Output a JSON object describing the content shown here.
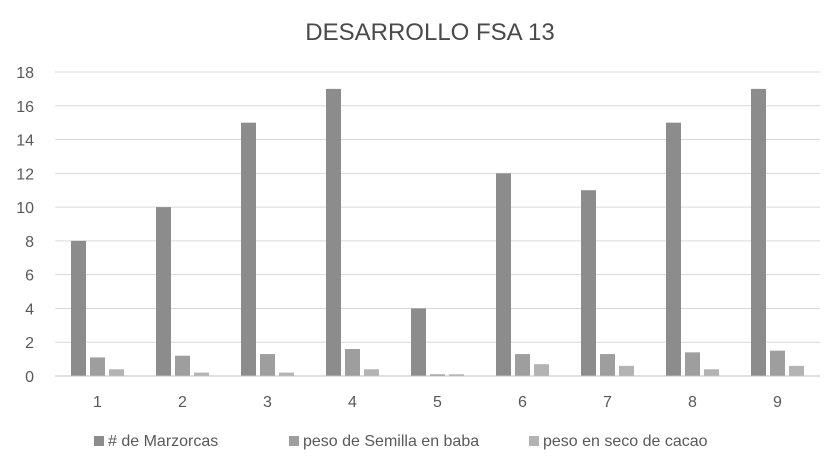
{
  "chart_data": {
    "type": "bar",
    "title": "DESARROLLO FSA 13",
    "xlabel": "",
    "ylabel": "",
    "categories": [
      "1",
      "2",
      "3",
      "4",
      "5",
      "6",
      "7",
      "8",
      "9"
    ],
    "series": [
      {
        "name": "# de Marzorcas",
        "color": "#8c8c8c",
        "values": [
          8,
          10,
          15,
          17,
          4,
          12,
          11,
          15,
          17
        ]
      },
      {
        "name": "peso de Semilla en baba",
        "color": "#9e9e9e",
        "values": [
          1.1,
          1.2,
          1.3,
          1.6,
          0.1,
          1.3,
          1.3,
          1.4,
          1.5
        ]
      },
      {
        "name": "peso en seco de  cacao",
        "color": "#b3b3b3",
        "values": [
          0.4,
          0.2,
          0.2,
          0.4,
          0.1,
          0.7,
          0.6,
          0.4,
          0.6
        ]
      }
    ],
    "ylim": [
      0,
      18
    ],
    "yticks": [
      0,
      2,
      4,
      6,
      8,
      10,
      12,
      14,
      16,
      18
    ],
    "grid": true,
    "legend_position": "bottom"
  }
}
